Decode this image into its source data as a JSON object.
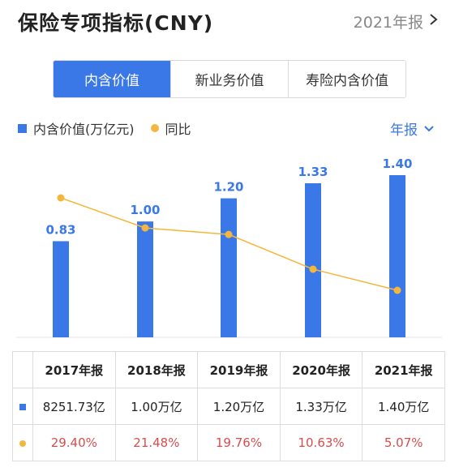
{
  "header": {
    "title": "保险专项指标(CNY)",
    "period": "2021年报"
  },
  "tabs": [
    {
      "label": "内含价值",
      "active": true
    },
    {
      "label": "新业务价值",
      "active": false
    },
    {
      "label": "寿险内含价值",
      "active": false
    }
  ],
  "legend": {
    "bar_label": "内含价值(万亿元)",
    "line_label": "同比"
  },
  "frequency": "年报",
  "colors": {
    "bar": "#3b78e7",
    "line": "#f5b63d",
    "negative_text": "#d94c4c"
  },
  "chart_data": {
    "type": "bar",
    "categories": [
      "2017年报",
      "2018年报",
      "2019年报",
      "2020年报",
      "2021年报"
    ],
    "series": [
      {
        "name": "内含价值(万亿元)",
        "type": "bar",
        "values": [
          0.83,
          1.0,
          1.2,
          1.33,
          1.4
        ],
        "labels": [
          "0.83",
          "1.00",
          "1.20",
          "1.33",
          "1.40"
        ]
      },
      {
        "name": "同比",
        "type": "line",
        "values": [
          29.4,
          21.48,
          19.76,
          10.63,
          5.07
        ]
      }
    ]
  },
  "table": {
    "headers": [
      "2017年报",
      "2018年报",
      "2019年报",
      "2020年报",
      "2021年报"
    ],
    "values": [
      "8251.73亿",
      "1.00万亿",
      "1.20万亿",
      "1.33万亿",
      "1.40万亿"
    ],
    "growth": [
      "29.40%",
      "21.48%",
      "19.76%",
      "10.63%",
      "5.07%"
    ]
  }
}
